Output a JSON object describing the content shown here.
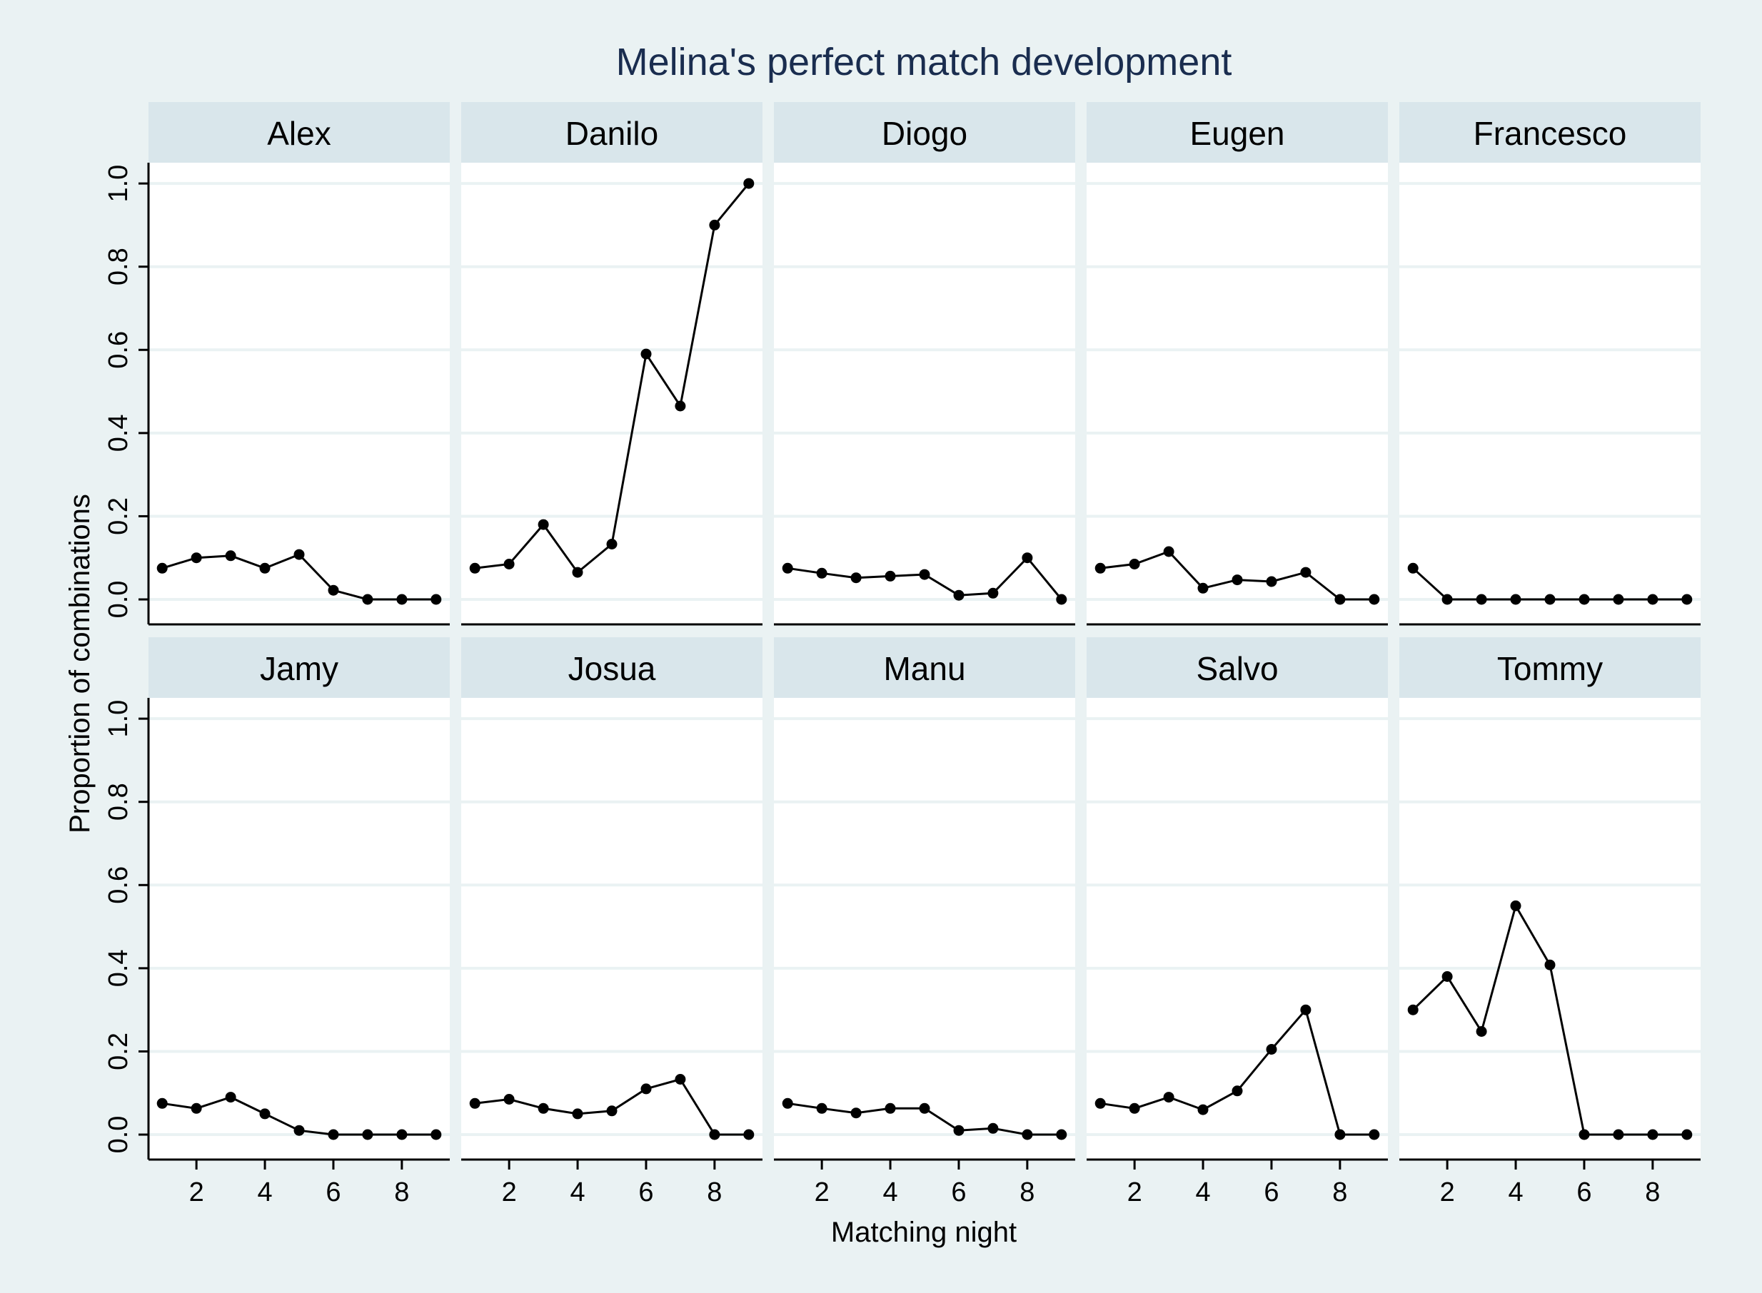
{
  "chart_data": {
    "type": "line",
    "title": "Melina's perfect match development",
    "xlabel": "Matching night",
    "ylabel": "Proportion of combinations",
    "x": [
      1,
      2,
      3,
      4,
      5,
      6,
      7,
      8,
      9
    ],
    "xticks": [
      2,
      4,
      6,
      8
    ],
    "xlim": [
      0.6,
      9.4
    ],
    "yticks": [
      0.0,
      0.2,
      0.4,
      0.6,
      0.8,
      1.0
    ],
    "ytick_labels": [
      "0.0",
      "0.2",
      "0.4",
      "0.6",
      "0.8",
      "1.0"
    ],
    "ylim": [
      -0.06,
      1.05
    ],
    "grid": true,
    "layout": "2 rows x 5 columns facets",
    "colors": {
      "background": "#eaf2f3",
      "panel": "#ffffff",
      "strip": "#d9e6eb",
      "title": "#1a2d4f",
      "series": "#000000"
    },
    "panels": [
      {
        "name": "Alex",
        "values": [
          0.075,
          0.1,
          0.105,
          0.075,
          0.108,
          0.022,
          0.0,
          0.0,
          0.0
        ]
      },
      {
        "name": "Danilo",
        "values": [
          0.075,
          0.085,
          0.18,
          0.065,
          0.133,
          0.59,
          0.465,
          0.9,
          1.0
        ]
      },
      {
        "name": "Diogo",
        "values": [
          0.075,
          0.063,
          0.052,
          0.056,
          0.06,
          0.01,
          0.015,
          0.1,
          0.0
        ]
      },
      {
        "name": "Eugen",
        "values": [
          0.075,
          0.085,
          0.115,
          0.027,
          0.047,
          0.043,
          0.065,
          0.0,
          0.0
        ]
      },
      {
        "name": "Francesco",
        "values": [
          0.075,
          0.0,
          0.0,
          0.0,
          0.0,
          0.0,
          0.0,
          0.0,
          0.0
        ]
      },
      {
        "name": "Jamy",
        "values": [
          0.075,
          0.063,
          0.09,
          0.05,
          0.01,
          0.0,
          0.0,
          0.0,
          0.0
        ]
      },
      {
        "name": "Josua",
        "values": [
          0.075,
          0.085,
          0.063,
          0.05,
          0.057,
          0.11,
          0.133,
          0.0,
          0.0
        ]
      },
      {
        "name": "Manu",
        "values": [
          0.075,
          0.063,
          0.052,
          0.063,
          0.063,
          0.01,
          0.015,
          0.0,
          0.0
        ]
      },
      {
        "name": "Salvo",
        "values": [
          0.075,
          0.063,
          0.09,
          0.06,
          0.105,
          0.205,
          0.3,
          0.0,
          0.0
        ]
      },
      {
        "name": "Tommy",
        "values": [
          0.3,
          0.38,
          0.248,
          0.55,
          0.408,
          0.0,
          0.0,
          0.0,
          0.0
        ]
      }
    ]
  }
}
